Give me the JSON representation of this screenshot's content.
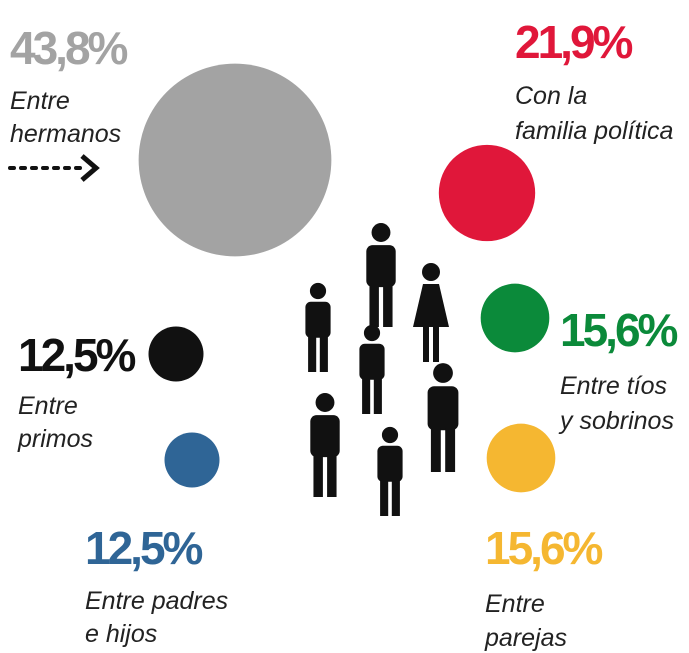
{
  "chart_data": {
    "type": "bubble",
    "categories": [
      [
        "Entre",
        "hermanos"
      ],
      [
        "Con la",
        "familia política"
      ],
      [
        "Entre tíos",
        "y sobrinos"
      ],
      [
        "Entre",
        "primos"
      ],
      [
        "Entre padres",
        "e hijos"
      ],
      [
        "Entre",
        "parejas"
      ]
    ],
    "values": [
      43.8,
      21.9,
      15.6,
      12.5,
      12.5,
      15.6
    ],
    "value_labels": [
      "43,8%",
      "21,9%",
      "15,6%",
      "12,5%",
      "12,5%",
      "15,6%"
    ],
    "colors": [
      "#a3a3a3",
      "#e0173a",
      "#0b8a3a",
      "#111111",
      "#2f6596",
      "#f5b731"
    ]
  }
}
